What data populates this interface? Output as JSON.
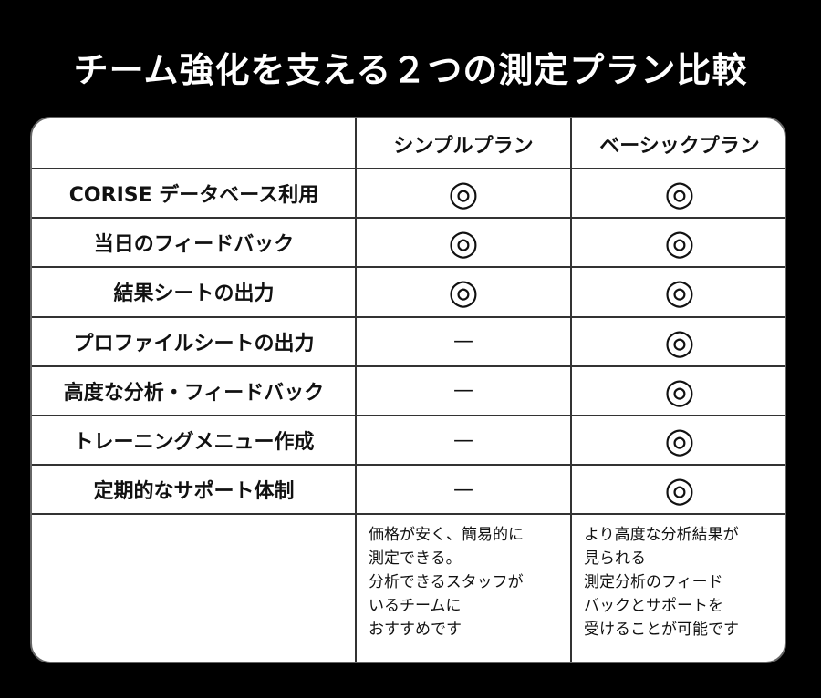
{
  "title": "チーム強化を支える２つの測定プラン比較",
  "table": {
    "columns": [
      "シンプルプラン",
      "ベーシックプラン"
    ],
    "rows": [
      [
        "CORISE データベース利用",
        "◎",
        "◎"
      ],
      [
        "当日のフィードバック",
        "◎",
        "◎"
      ],
      [
        "結果シートの出力",
        "◎",
        "◎"
      ],
      [
        "プロファイルシートの出力",
        "—",
        "◎"
      ],
      [
        "高度な分析・フィードバック",
        "—",
        "◎"
      ],
      [
        "トレーニングメニュー作成",
        "—",
        "◎"
      ],
      [
        "定期的なサポート体制",
        "—",
        "◎"
      ]
    ],
    "notes": [
      [
        "価格が安く、簡易的に",
        "測定できる。",
        "分析できるスタッフが",
        "いるチームに",
        "おすすめです"
      ],
      [
        "より高度な分析結果が",
        "見られる",
        "測定分析のフィード",
        "バックとサポートを",
        "受けることが可能です"
      ]
    ]
  }
}
